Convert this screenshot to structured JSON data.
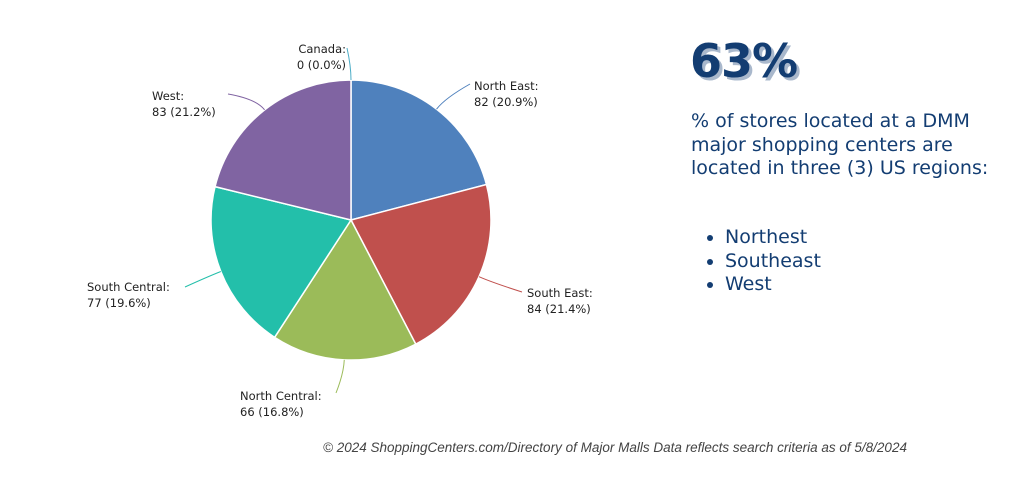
{
  "chart_data": {
    "type": "pie",
    "start": "top",
    "direction": "clockwise",
    "slices": [
      {
        "name": "North East",
        "value": 82,
        "percent": "20.9%",
        "label": "North East:",
        "value_label": "82 (20.9%)",
        "color": "#4f81bd"
      },
      {
        "name": "South East",
        "value": 84,
        "percent": "21.4%",
        "label": "South East:",
        "value_label": "84 (21.4%)",
        "color": "#c0504d"
      },
      {
        "name": "North Central",
        "value": 66,
        "percent": "16.8%",
        "label": "North Central:",
        "value_label": "66 (16.8%)",
        "color": "#9bbb59"
      },
      {
        "name": "South Central",
        "value": 77,
        "percent": "19.6%",
        "label": "South Central:",
        "value_label": "77 (19.6%)",
        "color": "#23bfaa"
      },
      {
        "name": "West",
        "value": 83,
        "percent": "21.2%",
        "label": "West:",
        "value_label": "83 (21.2%)",
        "color": "#8064a2"
      },
      {
        "name": "Canada",
        "value": 0,
        "percent": "0.0%",
        "label": "Canada:",
        "value_label": "0 (0.0%)",
        "color": "#4bacc6"
      }
    ]
  },
  "highlight": {
    "stat": "63%",
    "description": "% of stores located at a DMM major shopping centers are located in three (3) US regions:",
    "regions": [
      "Northest",
      "Southeast",
      "West"
    ]
  },
  "footer": "© 2024 ShoppingCenters.com/Directory of Major Malls Data reflects search criteria as of 5/8/2024"
}
